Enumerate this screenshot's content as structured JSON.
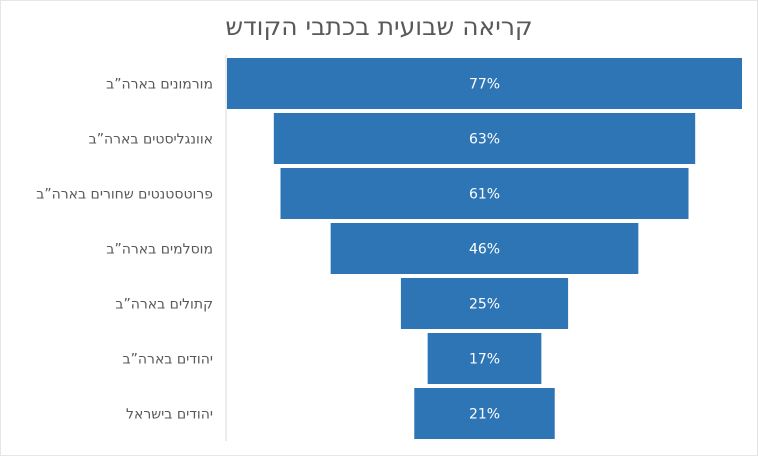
{
  "chart_data": {
    "type": "funnel",
    "title": "קריאה שבועית בכתבי הקודש",
    "categories": [
      "מורמונים בארה”ב",
      "אוונגליסטים בארה”ב",
      "פרוטסטנטים שחורים בארה”ב",
      "מוסלמים בארה”ב",
      "קתולים בארה”ב",
      "יהודים בארה”ב",
      "יהודים בישראל"
    ],
    "values": [
      77,
      63,
      61,
      46,
      25,
      17,
      21
    ],
    "value_labels": [
      "77%",
      "63%",
      "61%",
      "46%",
      "25%",
      "17%",
      "21%"
    ],
    "unit": "%",
    "bar_color": "#2E75B6",
    "legend": "none",
    "grid": false
  }
}
